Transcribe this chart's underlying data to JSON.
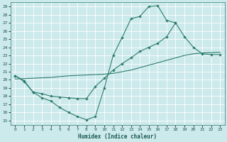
{
  "xlabel": "Humidex (Indice chaleur)",
  "xlim": [
    -0.5,
    23.5
  ],
  "ylim": [
    14.5,
    29.5
  ],
  "xticks": [
    0,
    1,
    2,
    3,
    4,
    5,
    6,
    7,
    8,
    9,
    10,
    11,
    12,
    13,
    14,
    15,
    16,
    17,
    18,
    19,
    20,
    21,
    22,
    23
  ],
  "yticks": [
    15,
    16,
    17,
    18,
    19,
    20,
    21,
    22,
    23,
    24,
    25,
    26,
    27,
    28,
    29
  ],
  "bg_color": "#cce9ec",
  "grid_color": "#ffffff",
  "line_color": "#2e7d6e",
  "line1_x": [
    0,
    1,
    2,
    3,
    4,
    5,
    6,
    7,
    8,
    9,
    10,
    11,
    12,
    13,
    14,
    15,
    16,
    17,
    18
  ],
  "line1_y": [
    20.5,
    19.8,
    18.5,
    17.8,
    17.4,
    16.6,
    16.0,
    15.5,
    15.1,
    15.5,
    19.0,
    23.0,
    25.2,
    27.5,
    27.8,
    29.0,
    29.1,
    27.3,
    27.0
  ],
  "line2_x": [
    0,
    1,
    2,
    3,
    4,
    5,
    6,
    7,
    8,
    9,
    10,
    11,
    12,
    13,
    14,
    15,
    16,
    17,
    18,
    19,
    20,
    21,
    22,
    23
  ],
  "line2_y": [
    20.1,
    20.15,
    20.2,
    20.25,
    20.3,
    20.4,
    20.5,
    20.55,
    20.6,
    20.65,
    20.7,
    20.8,
    21.0,
    21.2,
    21.5,
    21.8,
    22.1,
    22.4,
    22.7,
    23.0,
    23.2,
    23.3,
    23.35,
    23.4
  ],
  "line3_x": [
    0,
    1,
    2,
    3,
    4,
    5,
    6,
    7,
    8,
    9,
    10,
    11,
    12,
    13,
    14,
    15,
    16,
    17,
    18,
    19,
    20,
    21,
    22,
    23
  ],
  "line3_y": [
    20.5,
    19.9,
    18.5,
    18.3,
    18.0,
    17.9,
    17.8,
    17.7,
    17.7,
    19.2,
    20.2,
    21.2,
    22.0,
    22.7,
    23.5,
    24.0,
    24.5,
    25.3,
    27.0,
    25.3,
    24.0,
    23.2,
    23.1,
    23.1
  ]
}
